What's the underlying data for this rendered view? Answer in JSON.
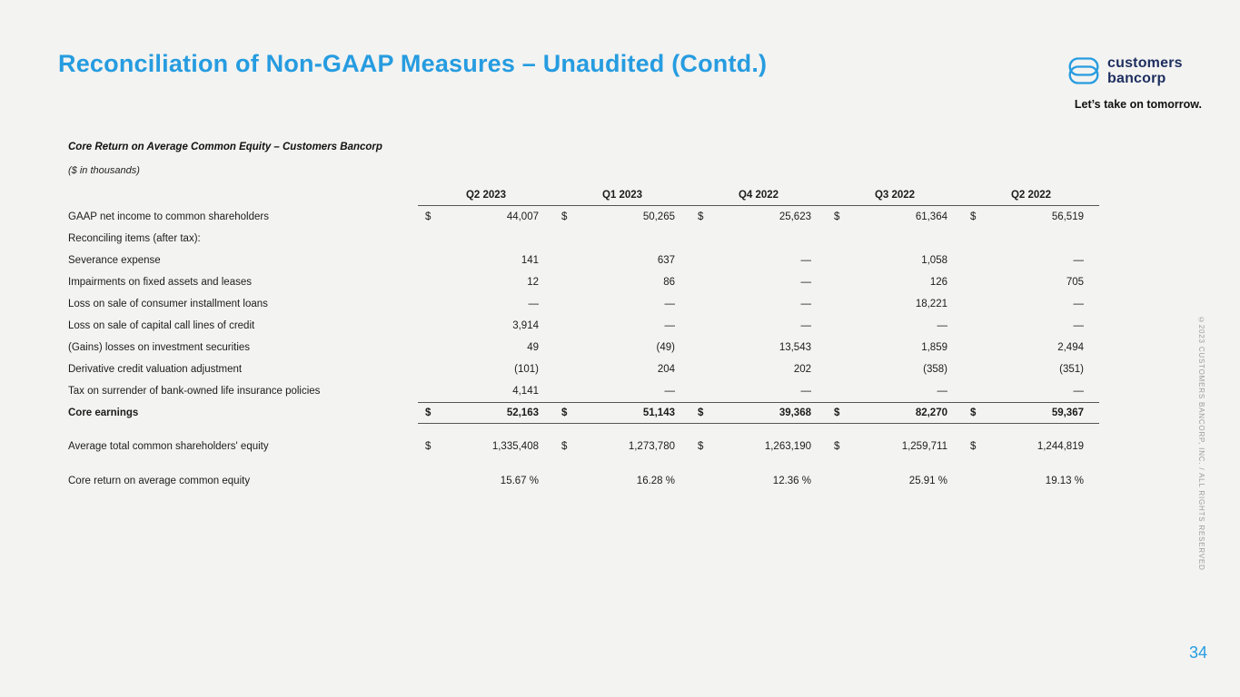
{
  "slide": {
    "title": "Reconciliation of Non-GAAP Measures – Unaudited (Contd.)",
    "page_number": "34",
    "copyright_vertical": "©2023 CUSTOMERS BANCORP, INC. / ALL RIGHTS RESERVED"
  },
  "logo": {
    "name_line1": "customers",
    "name_line2": "bancorp",
    "tagline": "Let’s take on tomorrow.",
    "icon": "customers-bancorp-mark"
  },
  "colors": {
    "accent_blue": "#269CE0",
    "navy": "#1D2E5F",
    "background": "#F3F3F1",
    "rule": "#555555",
    "muted_gray": "#9C9C9C"
  },
  "table": {
    "title": "Core Return on Average Common Equity – Customers Bancorp",
    "units_note": "($ in thousands)",
    "columns": [
      "Q2 2023",
      "Q1 2023",
      "Q4 2022",
      "Q3 2022",
      "Q2 2022"
    ],
    "rows": [
      {
        "label": "GAAP net income to common shareholders",
        "dollar": true,
        "values": [
          "44,007",
          "50,265",
          "25,623",
          "61,364",
          "56,519"
        ]
      },
      {
        "label": "Reconciling items (after tax):",
        "section": true,
        "values": [
          "",
          "",
          "",
          "",
          ""
        ]
      },
      {
        "label": "Severance expense",
        "values": [
          "141",
          "637",
          "—",
          "1,058",
          "—"
        ]
      },
      {
        "label": "Impairments on fixed assets and leases",
        "values": [
          "12",
          "86",
          "—",
          "126",
          "705"
        ]
      },
      {
        "label": "Loss on sale of consumer installment loans",
        "values": [
          "—",
          "—",
          "—",
          "18,221",
          "—"
        ]
      },
      {
        "label": "Loss on sale of capital call lines of credit",
        "values": [
          "3,914",
          "—",
          "—",
          "—",
          "—"
        ]
      },
      {
        "label": "(Gains) losses on investment securities",
        "values": [
          "49",
          "(49)",
          "13,543",
          "1,859",
          "2,494"
        ]
      },
      {
        "label": "Derivative credit valuation adjustment",
        "values": [
          "(101)",
          "204",
          "202",
          "(358)",
          "(351)"
        ]
      },
      {
        "label": "Tax on surrender of bank-owned life insurance policies",
        "values": [
          "4,141",
          "—",
          "—",
          "—",
          "—"
        ]
      },
      {
        "label": "Core earnings",
        "bold": true,
        "dollar": true,
        "core": true,
        "values": [
          "52,163",
          "51,143",
          "39,368",
          "82,270",
          "59,367"
        ]
      },
      {
        "label": "Average total common shareholders' equity",
        "dollar": true,
        "gap": true,
        "values": [
          "1,335,408",
          "1,273,780",
          "1,263,190",
          "1,259,711",
          "1,244,819"
        ]
      },
      {
        "label": "Core return on average common equity",
        "gap2": true,
        "values": [
          "15.67 %",
          "16.28 %",
          "12.36 %",
          "25.91 %",
          "19.13 %"
        ]
      }
    ]
  }
}
